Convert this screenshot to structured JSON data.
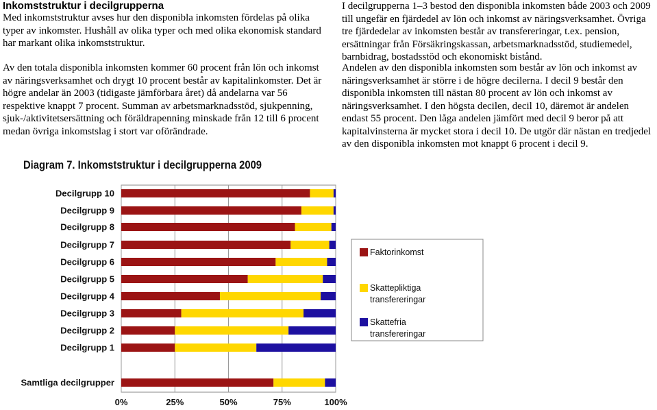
{
  "document": {
    "heading": "Inkomststruktur i decilgrupperna",
    "paragraphs": [
      "Med inkomststruktur avses hur den disponibla inkomsten fördelas på olika typer av inkomster. Hushåll av olika typer och med olika ekonomisk standard har markant olika inkomststruktur.",
      "Av den totala disponibla inkomsten kommer 60 procent från lön och inkomst av näringsverksamhet och drygt 10 procent består av kapitalinkomster. Det är högre andelar än 2003 (tidigaste jämförbara året) då andelarna var 56 respektive knappt 7 procent. Summan av arbetsmarknadsstöd, sjukpenning, sjuk-/aktivitetsersättning och föräldrapenning minskade från 12 till 6 procent medan övriga inkomstslag i stort var oförändrade.",
      "I decilgrupperna 1–3 bestod den disponibla inkomsten både 2003 och 2009 till ungefär en fjärdedel av lön och inkomst av näringsverksamhet. Övriga tre fjärdedelar av inkomsten består av transfereringar, t.ex. pension, ersättningar från Försäkringskassan, arbetsmarknadsstöd, studiemedel, barnbidrag, bostadsstöd och ekonomiskt bistånd.",
      "Andelen av den disponibla inkomsten som består av lön och inkomst av näringsverksamhet är större i de högre decilerna. I decil 9 består den disponibla inkomsten till nästan 80 procent av lön och inkomst av näringsverksamhet. I den högsta decilen, decil 10, däremot är andelen endast 55 procent. Den låga andelen jämfört med decil 9 beror på att kapitalvinsterna är mycket stora i decil 10. De utgör där nästan en tredjedel av den disponibla inkomsten mot knappt 6 procent i decil 9."
    ]
  },
  "chart_data": {
    "type": "bar",
    "orientation": "horizontal",
    "stacked": true,
    "title": "Diagram 7. Inkomststruktur i decilgrupperna 2009",
    "categories": [
      "Decilgrupp 10",
      "Decilgrupp 9",
      "Decilgrupp 8",
      "Decilgrupp 7",
      "Decilgrupp 6",
      "Decilgrupp 5",
      "Decilgrupp 4",
      "Decilgrupp 3",
      "Decilgrupp 2",
      "Decilgrupp 1",
      "Samtliga decilgrupper"
    ],
    "series": [
      {
        "name": "Faktorinkomst",
        "color": "#9b1414",
        "values": [
          88,
          84,
          81,
          79,
          72,
          59,
          46,
          28,
          25,
          25,
          71
        ]
      },
      {
        "name": "Skattepliktiga transfereringar",
        "color": "#ffd700",
        "values": [
          11,
          15,
          17,
          18,
          24,
          35,
          47,
          57,
          53,
          38,
          24
        ]
      },
      {
        "name": "Skattefria transfereringar",
        "color": "#1d10a0",
        "values": [
          1,
          1,
          2,
          3,
          4,
          6,
          7,
          15,
          22,
          37,
          5
        ]
      }
    ],
    "x_ticks": [
      "0%",
      "25%",
      "50%",
      "75%",
      "100%"
    ],
    "xlim": [
      0,
      100
    ],
    "grid": true,
    "legend_position": "right",
    "legend_entries": [
      {
        "lines": [
          "Faktorinkomst"
        ]
      },
      {
        "lines": [
          "Skattepliktiga",
          "transfereringar"
        ]
      },
      {
        "lines": [
          "Skattefria",
          "transfereringar"
        ]
      }
    ]
  }
}
